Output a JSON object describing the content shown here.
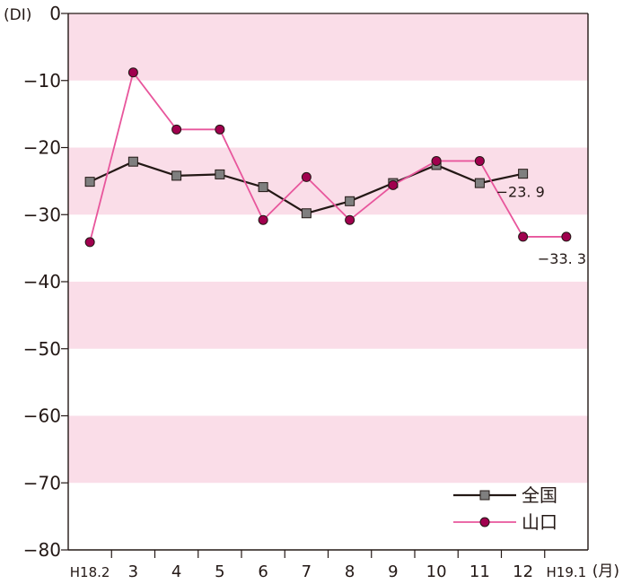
{
  "chart_data": {
    "type": "line",
    "ylabel": "(DI)",
    "x_unit": "(月)",
    "ylim": [
      -80,
      0
    ],
    "y_ticks": [
      0,
      -10,
      -20,
      -30,
      -40,
      -50,
      -60,
      -70,
      -80
    ],
    "y_tick_labels": [
      "0",
      "−10",
      "−20",
      "−30",
      "−40",
      "−50",
      "−60",
      "−70",
      "−80"
    ],
    "categories": [
      "H18.2",
      "3",
      "4",
      "5",
      "6",
      "7",
      "8",
      "9",
      "10",
      "11",
      "12",
      "H19.1"
    ],
    "background_bands": [
      [
        0,
        -10
      ],
      [
        -20,
        -30
      ],
      [
        -40,
        -50
      ],
      [
        -60,
        -70
      ]
    ],
    "band_color": "#fadde8",
    "legend_position": "bottom-right",
    "series": [
      {
        "name": "全国",
        "color": "#231815",
        "marker": "square",
        "marker_color": "#7f7f7f",
        "values": [
          -25.1,
          -22.1,
          -24.2,
          -24.0,
          -25.9,
          -29.8,
          -28.0,
          -25.3,
          -22.6,
          -25.3,
          -23.9,
          null
        ]
      },
      {
        "name": "山口",
        "color": "#e8569c",
        "marker": "circle",
        "marker_color": "#a0004e",
        "values": [
          -34.1,
          -8.8,
          -17.3,
          -17.3,
          -30.8,
          -24.4,
          -30.8,
          -25.6,
          -22.0,
          -22.0,
          -33.3,
          -33.3
        ]
      }
    ],
    "annotations": [
      {
        "text": "−23. 9",
        "series": "全国",
        "index": 10
      },
      {
        "text": "−33. 3",
        "series": "山口",
        "index": 11
      }
    ]
  }
}
